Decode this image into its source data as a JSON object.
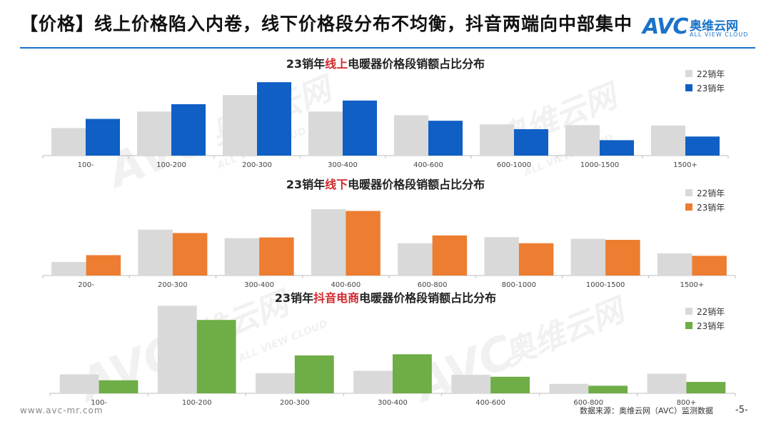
{
  "header": {
    "title": "【价格】线上价格陷入内卷，线下价格段分布不均衡，抖音两端向中部集中",
    "logo_text": "AVC",
    "logo_cn": "奥维云网",
    "logo_en": "ALL VIEW CLOUD"
  },
  "colors": {
    "s22": "#d9d9d9",
    "online23": "#0f5fc5",
    "offline23": "#ed7d31",
    "douyin23": "#6fad47",
    "title_rule": "#1a73c8",
    "highlight": "#d0282c"
  },
  "watermark": {
    "main": "奥维云网",
    "sub": "ALL VIEW CLOUD",
    "brand": "AVC"
  },
  "chart_data": [
    {
      "type": "bar",
      "title_prefix": "23销年",
      "title_highlight": "线上",
      "title_suffix": "电暖器价格段销额占比分布",
      "categories": [
        "100-",
        "100-200",
        "200-300",
        "300-400",
        "400-600",
        "600-1000",
        "1000-1500",
        "1500+"
      ],
      "series": [
        {
          "name": "22销年",
          "values": [
            7.5,
            12,
            16.5,
            12,
            11,
            8.5,
            8.3,
            8.2
          ]
        },
        {
          "name": "23销年",
          "values": [
            10,
            14,
            20,
            15,
            9.5,
            7.2,
            4.2,
            5.2
          ]
        }
      ],
      "ylim": [
        0,
        21
      ]
    },
    {
      "type": "bar",
      "title_prefix": "23销年",
      "title_highlight": "线下",
      "title_suffix": "电暖器价格段销额占比分布",
      "categories": [
        "200-",
        "200-300",
        "300-400",
        "400-600",
        "600-800",
        "800-1000",
        "1000-1500",
        "1500+"
      ],
      "series": [
        {
          "name": "22销年",
          "values": [
            4,
            13.5,
            11,
            19.5,
            9.5,
            11.3,
            10.8,
            6.5
          ]
        },
        {
          "name": "23销年",
          "values": [
            6,
            12.5,
            11.2,
            19,
            11.8,
            9.5,
            10.5,
            5.8
          ]
        }
      ],
      "ylim": [
        0,
        21
      ]
    },
    {
      "type": "bar",
      "title_prefix": "23销年",
      "title_highlight": "抖音电商",
      "title_suffix": "电暖器价格段销额占比分布",
      "categories": [
        "100-",
        "100-200",
        "200-300",
        "300-400",
        "400-600",
        "600-800",
        "800+"
      ],
      "series": [
        {
          "name": "22销年",
          "values": [
            8,
            37,
            8.5,
            9.5,
            7.8,
            4,
            8.3
          ]
        },
        {
          "name": "23销年",
          "values": [
            5.5,
            31,
            16,
            16.5,
            7,
            3.2,
            4.8
          ]
        }
      ],
      "ylim": [
        0,
        38
      ]
    }
  ],
  "footer": {
    "url": "www.avc-mr.com",
    "source": "数据来源：奥维云网（AVC）监测数据",
    "page": "-5-"
  }
}
